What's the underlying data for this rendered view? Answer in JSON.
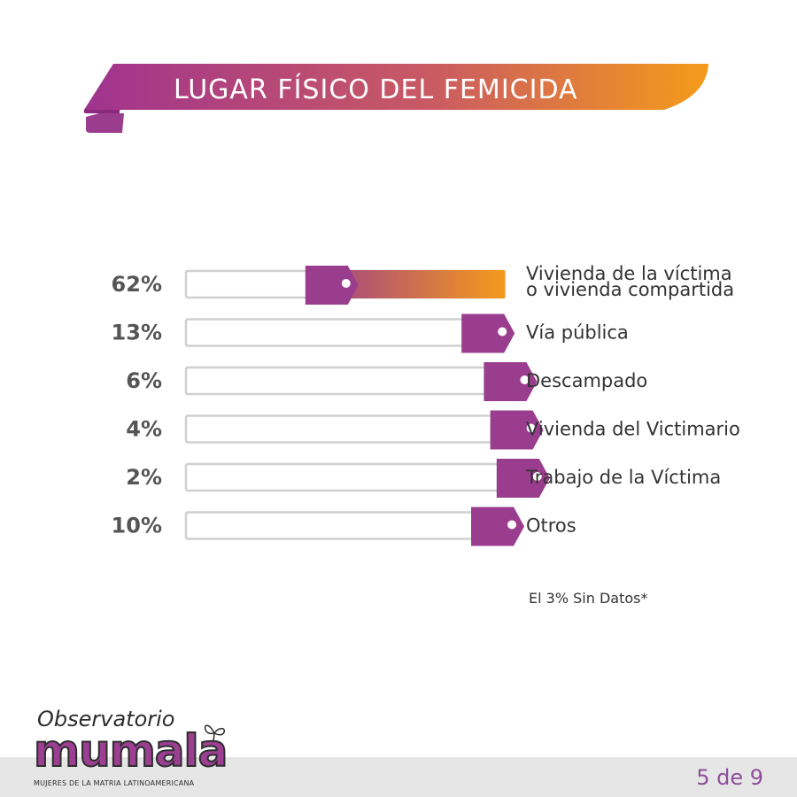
{
  "title": "LUGAR FÍSICO DEL FEMICIDA",
  "colors": {
    "purple": "#9b3d8e",
    "orange": "#f59a1b",
    "track_border": "#d0d0d0",
    "page_num": "#8e4d9c"
  },
  "chart_data": {
    "type": "bar",
    "orientation": "horizontal",
    "categories": [
      [
        "Vivienda de la víctima",
        "o vivienda compartida"
      ],
      [
        "Vía pública"
      ],
      [
        "Descampado"
      ],
      [
        "Vivienda del Victimario"
      ],
      [
        "Trabajo de la Víctima"
      ],
      [
        "Otros"
      ]
    ],
    "values": [
      62,
      13,
      6,
      4,
      2,
      10
    ],
    "value_labels": [
      "62%",
      "13%",
      "6%",
      "4%",
      "2%",
      "10%"
    ],
    "xlim": [
      0,
      100
    ],
    "grid": false,
    "legend": "none"
  },
  "note": "El 3% Sin Datos*",
  "footer": {
    "logo_top": "Observatorio",
    "logo_main": "mumala",
    "logo_sub": "MUJERES DE LA MATRIA LATINOAMERICANA",
    "page": "5 de 9"
  },
  "icons": {
    "logo_ornament": "butterfly-icon",
    "bar_marker": "tag-icon"
  }
}
